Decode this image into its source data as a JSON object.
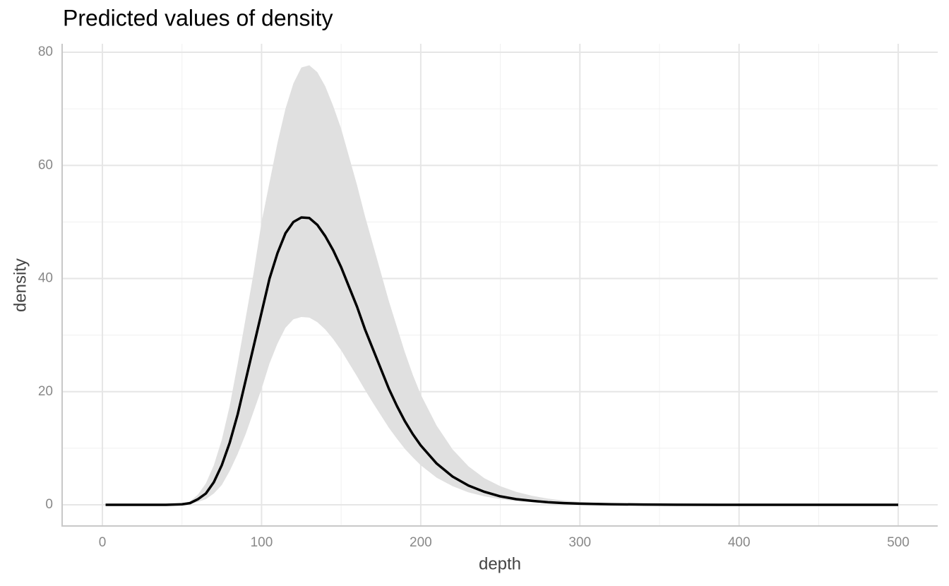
{
  "chart_data": {
    "type": "line",
    "title": "Predicted values of density",
    "x_label": "depth",
    "y_label": "density",
    "x": [
      2,
      10,
      20,
      30,
      40,
      50,
      55,
      60,
      65,
      70,
      75,
      80,
      85,
      90,
      95,
      100,
      105,
      110,
      115,
      120,
      125,
      130,
      135,
      140,
      145,
      150,
      155,
      160,
      165,
      170,
      175,
      180,
      185,
      190,
      195,
      200,
      210,
      220,
      230,
      240,
      250,
      260,
      270,
      280,
      290,
      300,
      320,
      340,
      360,
      400,
      450,
      500
    ],
    "series": [
      {
        "name": "density",
        "color": "#000000",
        "values": [
          0,
          0,
          0,
          0,
          0,
          0.1,
          0.3,
          1,
          2,
          4,
          7,
          11,
          16,
          22,
          28,
          34,
          40,
          44.5,
          48,
          50,
          50.8,
          50.7,
          49.5,
          47.5,
          45,
          42,
          38.5,
          35,
          31,
          27.5,
          24,
          20.5,
          17.5,
          14.8,
          12.5,
          10.5,
          7.3,
          5,
          3.4,
          2.3,
          1.5,
          1,
          0.7,
          0.45,
          0.3,
          0.2,
          0.1,
          0.05,
          0.02,
          0,
          0,
          0
        ],
        "ci_low": [
          0,
          0,
          0,
          0,
          0,
          0.05,
          0.15,
          0.5,
          1,
          2,
          3.5,
          6,
          9,
          12.5,
          16.5,
          20.5,
          25,
          28.5,
          31.3,
          32.8,
          33.2,
          33.1,
          32.3,
          31,
          29.3,
          27.3,
          25,
          22.7,
          20.3,
          18,
          15.8,
          13.6,
          11.7,
          9.9,
          8.4,
          7,
          4.8,
          3.3,
          2.2,
          1.5,
          1,
          0.65,
          0.45,
          0.3,
          0.2,
          0.12,
          0.06,
          0.03,
          0.01,
          0,
          0,
          0
        ],
        "ci_high": [
          0,
          0,
          0,
          0,
          0,
          0.2,
          0.6,
          1.8,
          3.8,
          7,
          11.5,
          17.5,
          25,
          33,
          41,
          50,
          57,
          64,
          70,
          74.5,
          77.3,
          77.7,
          76.5,
          74,
          70.5,
          66.5,
          61.5,
          56.5,
          51,
          46,
          41,
          36,
          31.5,
          27,
          23,
          19.5,
          14,
          9.8,
          6.8,
          4.7,
          3.3,
          2.3,
          1.6,
          1.1,
          0.75,
          0.5,
          0.25,
          0.12,
          0.05,
          0.01,
          0,
          0
        ],
        "ci_color": "#e0e0e0"
      }
    ],
    "xlim": [
      -25.3,
      524.8
    ],
    "ylim": [
      -3.74,
      81.5
    ],
    "xticks": [
      0,
      100,
      200,
      300,
      400,
      500
    ],
    "yticks": [
      0,
      20,
      40,
      60,
      80
    ],
    "grid": true,
    "minor_grid": true
  }
}
